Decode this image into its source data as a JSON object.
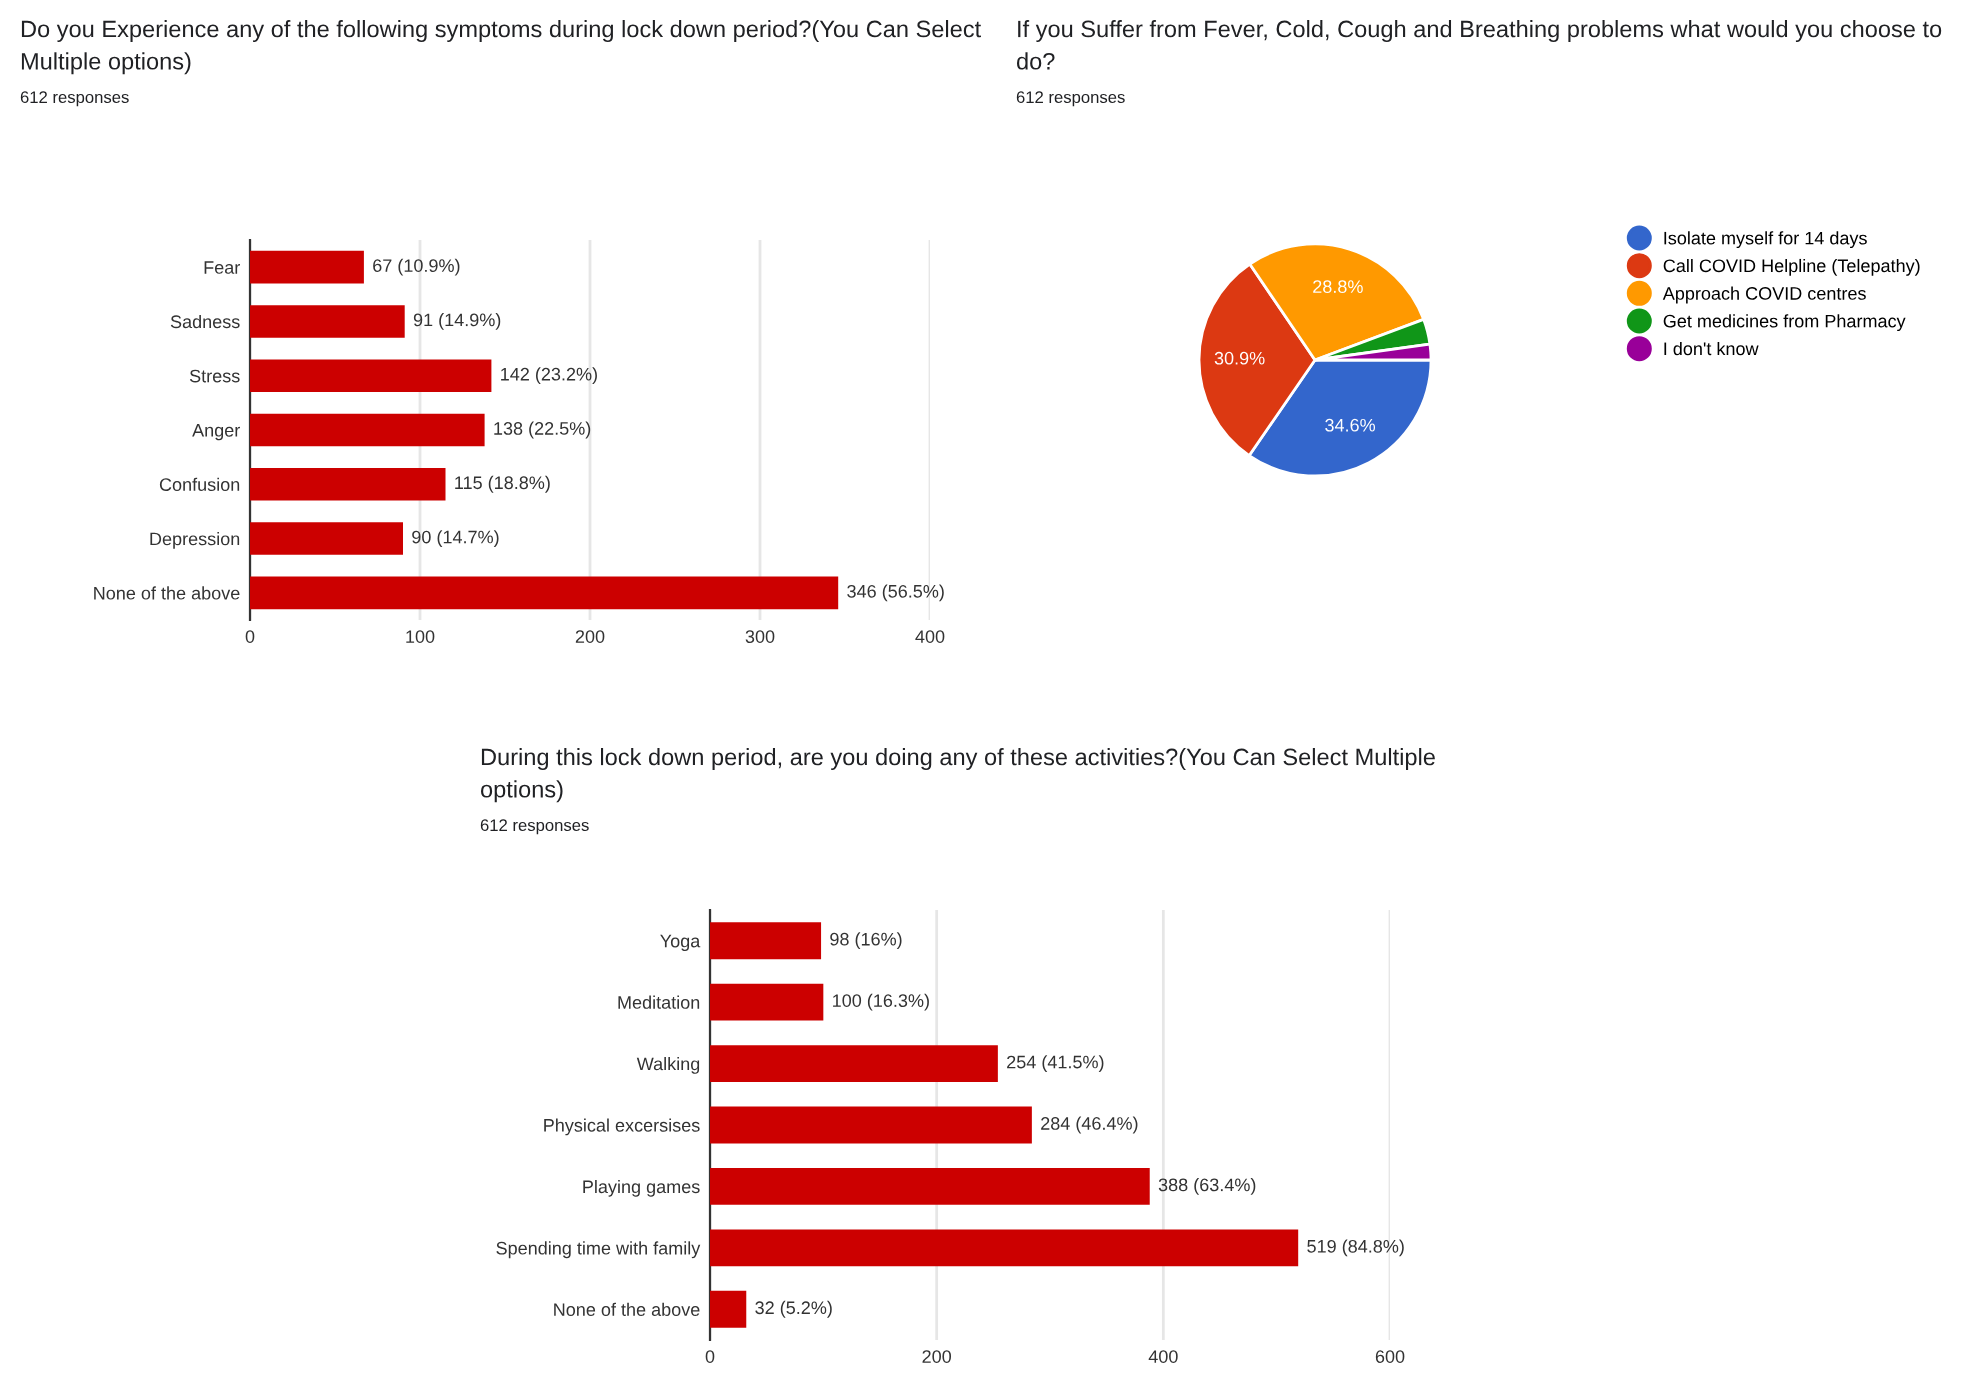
{
  "chart_data": [
    {
      "type": "bar",
      "orientation": "horizontal",
      "title": "Do you Experience any of the following symptoms during lock down period?(You Can Select Multiple options)",
      "subtitle": "612 responses",
      "categories": [
        "Fear",
        "Sadness",
        "Stress",
        "Anger",
        "Confusion",
        "Depression",
        "None of the above"
      ],
      "values": [
        67,
        91,
        142,
        138,
        115,
        90,
        346
      ],
      "value_labels": [
        "67 (10.9%)",
        "91 (14.9%)",
        "142 (23.2%)",
        "138 (22.5%)",
        "115 (18.8%)",
        "90 (14.7%)",
        "346 (56.5%)"
      ],
      "color": "#cc0000",
      "xlim": [
        0,
        400
      ],
      "xticks": [
        0,
        100,
        200,
        300,
        400
      ],
      "grid": "x"
    },
    {
      "type": "pie",
      "title": "If you Suffer from Fever, Cold, Cough and Breathing problems what would you choose to do?",
      "subtitle": "612 responses",
      "categories": [
        "Isolate myself for 14 days",
        "Call COVID Helpline (Telepathy)",
        "Approach COVID centres",
        "Get medicines from Pharmacy",
        "I don't know"
      ],
      "values": [
        34.6,
        30.9,
        28.8,
        3.5,
        2.2
      ],
      "value_labels": [
        "34.6%",
        "30.9%",
        "28.8%",
        null,
        null
      ],
      "colors": [
        "#3366cc",
        "#dc3912",
        "#ff9900",
        "#109618",
        "#990099"
      ],
      "legend": "right"
    },
    {
      "type": "bar",
      "orientation": "horizontal",
      "title": "During this lock down period, are you doing any of these activities?(You Can Select Multiple options)",
      "subtitle": "612 responses",
      "categories": [
        "Yoga",
        "Meditation",
        "Walking",
        "Physical excersises",
        "Playing games",
        "Spending time with family",
        "None of the above"
      ],
      "values": [
        98,
        100,
        254,
        284,
        388,
        519,
        32
      ],
      "value_labels": [
        "98 (16%)",
        "100 (16.3%)",
        "254 (41.5%)",
        "284 (46.4%)",
        "388 (63.4%)",
        "519 (84.8%)",
        "32 (5.2%)"
      ],
      "color": "#cc0000",
      "xlim": [
        0,
        600
      ],
      "xticks": [
        0,
        200,
        400,
        600
      ],
      "grid": "x"
    }
  ]
}
